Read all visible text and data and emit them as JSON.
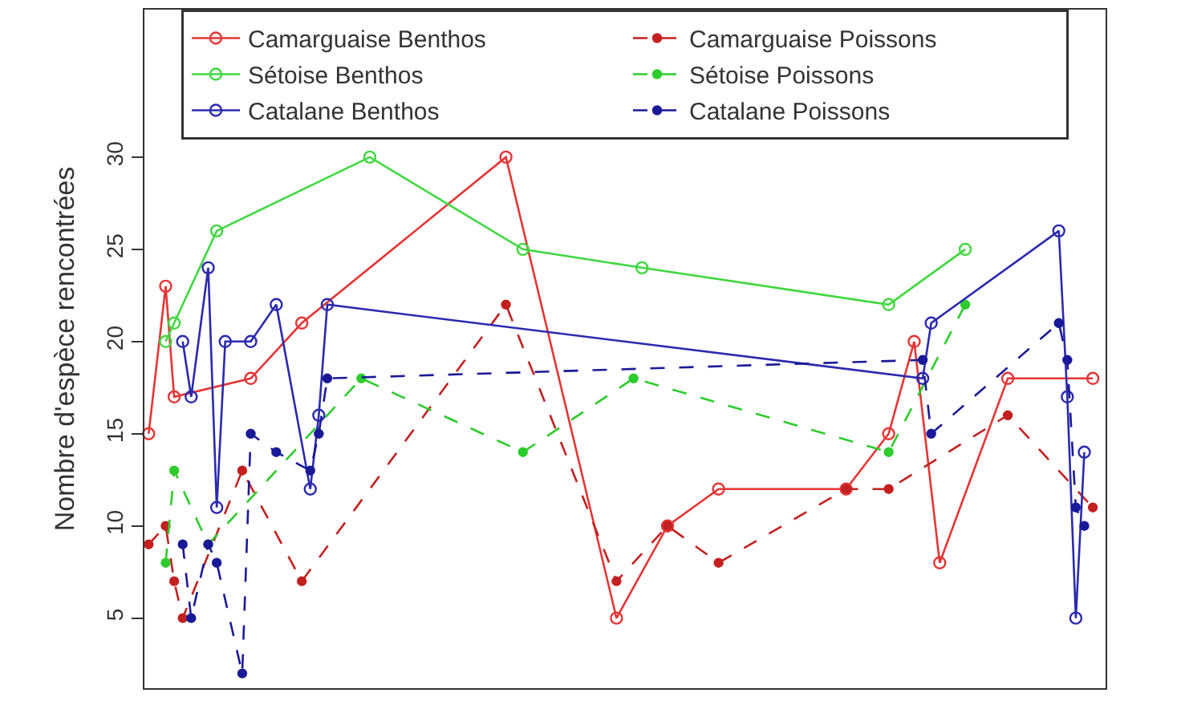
{
  "chart_data": {
    "type": "line",
    "ylabel": "Nombre d'espèce rencontrées",
    "categories": [
      null,
      null,
      null,
      null,
      null,
      null,
      null,
      null,
      null,
      null,
      null,
      null,
      null,
      null,
      null,
      null,
      null,
      null,
      null,
      null,
      null,
      null,
      null,
      null,
      null,
      null,
      null,
      null,
      null,
      null,
      null,
      null,
      null,
      null,
      null,
      null,
      null,
      null,
      null,
      null,
      null,
      null,
      null,
      null,
      null,
      null,
      null,
      null,
      null,
      null,
      null,
      null,
      null,
      null,
      null,
      null,
      null,
      null,
      null,
      null,
      null,
      null,
      null,
      null,
      null,
      null,
      null,
      null,
      null,
      null,
      null,
      null,
      null,
      null,
      null,
      null,
      null,
      null,
      null,
      null,
      null,
      null,
      null,
      null,
      null,
      null,
      null,
      null,
      null,
      null,
      null,
      null,
      null,
      null,
      null,
      null,
      null,
      null,
      null,
      null,
      null,
      null,
      null,
      null,
      null,
      null,
      null,
      null,
      null,
      null,
      null,
      null,
      null
    ],
    "ylim": [
      1.2,
      38
    ],
    "yticks": [
      5,
      10,
      15,
      20,
      25,
      30
    ],
    "tick_labels": "y",
    "legend": "top",
    "marker": "circle",
    "series": [
      {
        "name": "Camarguaise Benthos",
        "color": "#e53535",
        "line_style": "solid",
        "values": [
          15,
          null,
          23,
          17,
          null,
          null,
          null,
          null,
          null,
          null,
          null,
          null,
          18,
          null,
          null,
          null,
          null,
          null,
          21,
          null,
          null,
          null,
          null,
          null,
          null,
          null,
          null,
          null,
          null,
          null,
          null,
          null,
          null,
          null,
          null,
          null,
          null,
          null,
          null,
          null,
          null,
          null,
          30,
          null,
          null,
          null,
          null,
          null,
          null,
          null,
          null,
          null,
          null,
          null,
          null,
          5,
          null,
          null,
          null,
          null,
          null,
          10,
          null,
          null,
          null,
          null,
          null,
          12,
          null,
          null,
          null,
          null,
          null,
          null,
          null,
          null,
          null,
          null,
          null,
          null,
          null,
          null,
          12,
          null,
          null,
          null,
          null,
          15,
          null,
          null,
          20,
          null,
          null,
          8,
          null,
          null,
          null,
          null,
          null,
          null,
          null,
          18,
          null,
          null,
          null,
          null,
          null,
          null,
          null,
          null,
          null,
          18,
          null
        ]
      },
      {
        "name": "Camarguaise Poissons",
        "color": "#c42020",
        "line_style": "dashed",
        "values": [
          9,
          null,
          10,
          7,
          5,
          null,
          null,
          null,
          null,
          null,
          null,
          13,
          null,
          null,
          null,
          null,
          null,
          null,
          7,
          null,
          null,
          null,
          null,
          null,
          null,
          null,
          null,
          null,
          null,
          null,
          null,
          null,
          null,
          null,
          null,
          null,
          null,
          null,
          null,
          null,
          null,
          null,
          22,
          null,
          null,
          null,
          null,
          null,
          null,
          null,
          null,
          null,
          null,
          null,
          null,
          7,
          null,
          null,
          null,
          null,
          null,
          10,
          null,
          null,
          null,
          null,
          null,
          8,
          null,
          null,
          null,
          null,
          null,
          null,
          null,
          null,
          null,
          null,
          null,
          null,
          null,
          null,
          12,
          null,
          null,
          null,
          null,
          12,
          null,
          null,
          null,
          null,
          null,
          null,
          null,
          null,
          null,
          null,
          null,
          null,
          null,
          16,
          null,
          null,
          null,
          null,
          null,
          null,
          null,
          null,
          null,
          11,
          null
        ]
      },
      {
        "name": "Sétoise Benthos",
        "color": "#3fd83f",
        "line_style": "solid",
        "values": [
          null,
          null,
          20,
          21,
          null,
          null,
          null,
          null,
          26,
          null,
          null,
          null,
          null,
          null,
          null,
          null,
          null,
          null,
          null,
          null,
          null,
          null,
          null,
          null,
          null,
          null,
          30,
          null,
          null,
          null,
          null,
          null,
          null,
          null,
          null,
          null,
          null,
          null,
          null,
          null,
          null,
          null,
          null,
          null,
          25,
          null,
          null,
          null,
          null,
          null,
          null,
          null,
          null,
          null,
          null,
          null,
          null,
          null,
          24,
          null,
          null,
          null,
          null,
          null,
          null,
          null,
          null,
          null,
          null,
          null,
          null,
          null,
          null,
          null,
          null,
          null,
          null,
          null,
          null,
          null,
          null,
          null,
          null,
          null,
          null,
          null,
          null,
          22,
          null,
          null,
          null,
          null,
          null,
          null,
          null,
          null,
          25,
          null,
          null,
          null,
          null,
          null,
          null,
          null,
          null,
          null,
          null,
          null,
          null,
          null,
          null,
          null,
          null
        ]
      },
      {
        "name": "Sétoise Poissons",
        "color": "#2ccc2c",
        "line_style": "dashed",
        "values": [
          null,
          null,
          8,
          13,
          null,
          null,
          null,
          9,
          null,
          null,
          null,
          null,
          null,
          null,
          null,
          null,
          null,
          null,
          null,
          null,
          null,
          null,
          null,
          null,
          null,
          18,
          null,
          null,
          null,
          null,
          null,
          null,
          null,
          null,
          null,
          null,
          null,
          null,
          null,
          null,
          null,
          null,
          null,
          null,
          14,
          null,
          null,
          null,
          null,
          null,
          null,
          null,
          null,
          null,
          null,
          null,
          null,
          18,
          null,
          null,
          null,
          null,
          null,
          null,
          null,
          null,
          null,
          null,
          null,
          null,
          null,
          null,
          null,
          null,
          null,
          null,
          null,
          null,
          null,
          null,
          null,
          null,
          null,
          null,
          null,
          null,
          null,
          14,
          null,
          null,
          null,
          null,
          null,
          null,
          null,
          null,
          22,
          null,
          null,
          null,
          null,
          null,
          null,
          null,
          null,
          null,
          null,
          null,
          null,
          null,
          null,
          null,
          null
        ]
      },
      {
        "name": "Catalane Benthos",
        "color": "#2a2ab0",
        "line_style": "solid",
        "values": [
          null,
          null,
          null,
          null,
          20,
          17,
          null,
          24,
          11,
          20,
          null,
          null,
          20,
          null,
          null,
          22,
          null,
          null,
          null,
          12,
          16,
          22,
          null,
          null,
          null,
          null,
          null,
          null,
          null,
          null,
          null,
          null,
          null,
          null,
          null,
          null,
          null,
          null,
          null,
          null,
          null,
          null,
          null,
          null,
          null,
          null,
          null,
          null,
          null,
          null,
          null,
          null,
          null,
          null,
          null,
          null,
          null,
          null,
          null,
          null,
          null,
          null,
          null,
          null,
          null,
          null,
          null,
          null,
          null,
          null,
          null,
          null,
          null,
          null,
          null,
          null,
          null,
          null,
          null,
          null,
          null,
          null,
          null,
          null,
          null,
          null,
          null,
          null,
          null,
          null,
          null,
          18,
          21,
          null,
          null,
          null,
          null,
          null,
          null,
          null,
          null,
          null,
          null,
          null,
          null,
          null,
          null,
          26,
          17,
          5,
          14,
          null,
          null
        ]
      },
      {
        "name": "Catalane Poissons",
        "color": "#1a1a98",
        "line_style": "dashed",
        "values": [
          null,
          null,
          null,
          null,
          9,
          5,
          null,
          9,
          8,
          null,
          null,
          2,
          15,
          null,
          null,
          14,
          null,
          null,
          null,
          13,
          15,
          18,
          null,
          null,
          null,
          null,
          null,
          null,
          null,
          null,
          null,
          null,
          null,
          null,
          null,
          null,
          null,
          null,
          null,
          null,
          null,
          null,
          null,
          null,
          null,
          null,
          null,
          null,
          null,
          null,
          null,
          null,
          null,
          null,
          null,
          null,
          null,
          null,
          null,
          null,
          null,
          null,
          null,
          null,
          null,
          null,
          null,
          null,
          null,
          null,
          null,
          null,
          null,
          null,
          null,
          null,
          null,
          null,
          null,
          null,
          null,
          null,
          null,
          null,
          null,
          null,
          null,
          null,
          null,
          null,
          null,
          19,
          15,
          null,
          null,
          null,
          null,
          null,
          null,
          null,
          null,
          null,
          null,
          null,
          null,
          null,
          null,
          21,
          19,
          11,
          10,
          null,
          null
        ]
      }
    ]
  }
}
